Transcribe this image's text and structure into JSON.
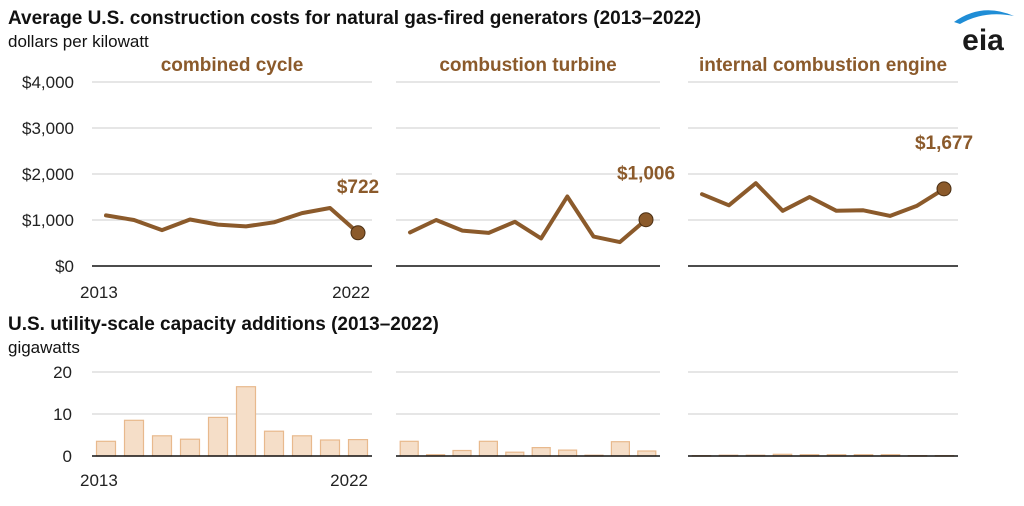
{
  "header": {
    "title": "Average U.S. construction costs for natural gas-fired generators (2013–2022)",
    "unit": "dollars per kilowatt"
  },
  "section2": {
    "title": "U.S. utility-scale capacity additions (2013–2022)",
    "unit": "gigawatts"
  },
  "logo": {
    "text": "eia"
  },
  "colors": {
    "line": "#8B5A2B",
    "bar_fill": "#F5DEC8",
    "bar_stroke": "#E8B98D",
    "grid": "#cccccc",
    "axis": "#111111",
    "panel_title": "#8B5A2B"
  },
  "chart_data": [
    {
      "type": "line",
      "title": "combined cycle",
      "x": [
        2013,
        2014,
        2015,
        2016,
        2017,
        2018,
        2019,
        2020,
        2021,
        2022
      ],
      "values": [
        1100,
        1000,
        780,
        1010,
        900,
        860,
        950,
        1150,
        1260,
        722
      ],
      "end_label": "$722",
      "ylim": [
        0,
        4000
      ],
      "yticks": [
        "$0",
        "$1,000",
        "$2,000",
        "$3,000",
        "$4,000"
      ],
      "xtick_labels": [
        "2013",
        "2022"
      ]
    },
    {
      "type": "line",
      "title": "combustion turbine",
      "x": [
        2013,
        2014,
        2015,
        2016,
        2017,
        2018,
        2019,
        2020,
        2021,
        2022
      ],
      "values": [
        730,
        1000,
        770,
        720,
        960,
        600,
        1510,
        640,
        520,
        1006
      ],
      "end_label": "$1,006",
      "ylim": [
        0,
        4000
      ]
    },
    {
      "type": "line",
      "title": "internal combustion engine",
      "x": [
        2013,
        2014,
        2015,
        2016,
        2017,
        2018,
        2019,
        2020,
        2021,
        2022
      ],
      "values": [
        1560,
        1320,
        1800,
        1200,
        1500,
        1200,
        1210,
        1090,
        1310,
        1677
      ],
      "end_label": "$1,677",
      "ylim": [
        0,
        4000
      ]
    },
    {
      "type": "bar",
      "x": [
        2013,
        2014,
        2015,
        2016,
        2017,
        2018,
        2019,
        2020,
        2021,
        2022
      ],
      "values": [
        3.5,
        8.5,
        4.8,
        4.0,
        9.2,
        16.5,
        5.9,
        4.8,
        3.8,
        3.9
      ],
      "ylim": [
        0,
        20
      ],
      "yticks": [
        "0",
        "10",
        "20"
      ],
      "xtick_labels": [
        "2013",
        "2022"
      ]
    },
    {
      "type": "bar",
      "x": [
        2013,
        2014,
        2015,
        2016,
        2017,
        2018,
        2019,
        2020,
        2021,
        2022
      ],
      "values": [
        3.5,
        0.3,
        1.3,
        3.5,
        0.9,
        2.0,
        1.4,
        0.2,
        3.4,
        1.2
      ],
      "ylim": [
        0,
        20
      ]
    },
    {
      "type": "bar",
      "x": [
        2013,
        2014,
        2015,
        2016,
        2017,
        2018,
        2019,
        2020,
        2021,
        2022
      ],
      "values": [
        0.1,
        0.2,
        0.2,
        0.4,
        0.3,
        0.3,
        0.3,
        0.3,
        0.1,
        0.1
      ],
      "ylim": [
        0,
        20
      ]
    }
  ]
}
